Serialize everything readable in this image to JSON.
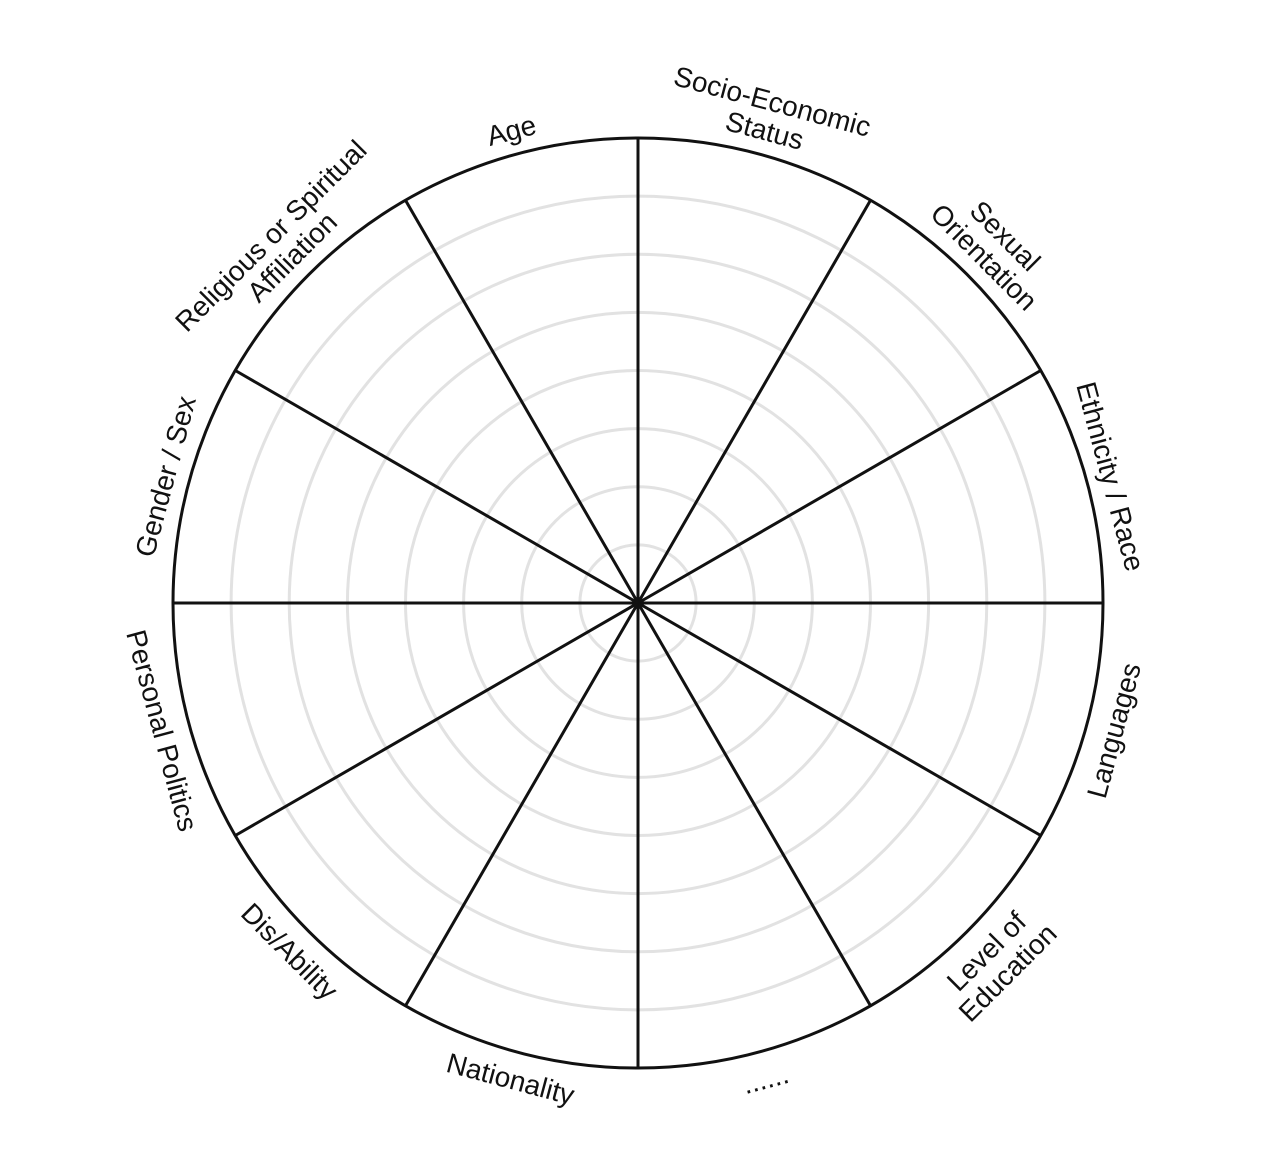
{
  "wheel": {
    "ring_color": "#e2e2e2",
    "line_color": "#111111",
    "inner_ring_count": 7,
    "segments": [
      {
        "id": "socio-economic-status",
        "lines": [
          "Socio-Economic",
          "Status"
        ]
      },
      {
        "id": "sexual-orientation",
        "lines": [
          "Sexual",
          "Orientation"
        ]
      },
      {
        "id": "ethnicity-race",
        "lines": [
          "Ethnicity / Race"
        ]
      },
      {
        "id": "languages",
        "lines": [
          "Languages"
        ]
      },
      {
        "id": "level-of-education",
        "lines": [
          "Level of",
          "Education"
        ]
      },
      {
        "id": "blank",
        "lines": [
          "......"
        ]
      },
      {
        "id": "nationality",
        "lines": [
          "Nationality"
        ]
      },
      {
        "id": "dis-ability",
        "lines": [
          "Dis/Ability"
        ]
      },
      {
        "id": "personal-politics",
        "lines": [
          "Personal Politics"
        ]
      },
      {
        "id": "gender-sex",
        "lines": [
          "Gender / Sex"
        ]
      },
      {
        "id": "religious-or-spiritual-affiliation",
        "lines": [
          "Religious or Spiritual",
          "Affiliation"
        ]
      },
      {
        "id": "age",
        "lines": [
          "Age"
        ]
      }
    ]
  }
}
